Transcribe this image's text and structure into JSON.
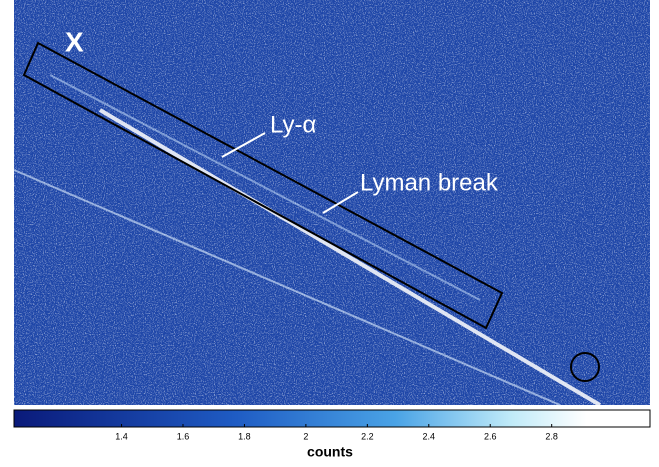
{
  "annotations": {
    "marker": "X",
    "lya": "Ly-α",
    "break": "Lyman break"
  },
  "colorbar": {
    "label": "counts",
    "lim": [
      1.05,
      3.12
    ],
    "ticks": [
      1.4,
      1.6,
      1.8,
      2,
      2.2,
      2.4,
      2.6,
      2.8
    ]
  }
}
